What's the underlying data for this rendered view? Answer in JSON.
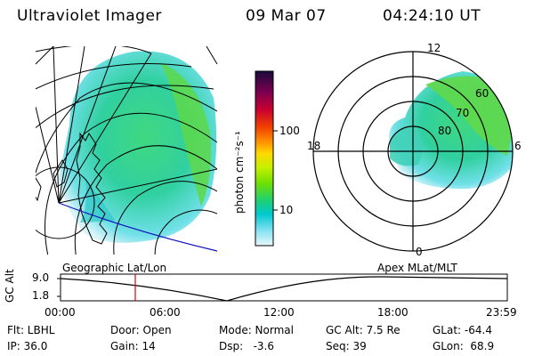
{
  "header": {
    "instrument": "Ultraviolet Imager",
    "date": "09 Mar 07",
    "time": "04:24:10 UT"
  },
  "left_panel": {
    "projection_label": "Geographic Lat/Lon"
  },
  "colorbar": {
    "label": "photon cm⁻²s⁻¹",
    "ticks": [
      "100",
      "10"
    ],
    "scale": "log",
    "colors": [
      "#1a0a3a",
      "#7a0050",
      "#c80030",
      "#f04000",
      "#ff8c00",
      "#ffd700",
      "#c8f000",
      "#70e000",
      "#20d070",
      "#00c8d0",
      "#80e0f0",
      "#e8f8fc"
    ]
  },
  "right_panel": {
    "projection_label": "Apex MLat/MLT",
    "mlt_labels": [
      "12",
      "18",
      "6",
      "0"
    ],
    "mlat_labels": [
      "60",
      "70",
      "80"
    ]
  },
  "altitude_plot": {
    "ylabel": "GC Alt",
    "yticks": [
      "9.0",
      "1.8"
    ],
    "xticks": [
      "00:00",
      "06:00",
      "12:00",
      "18:00",
      "23:59"
    ],
    "current_time_hours": 4.4
  },
  "info": {
    "flt": "Flt: LBHL",
    "ip": "IP: 36.0",
    "door": "Door: Open",
    "gain": "Gain: 14",
    "mode": "Mode: Normal",
    "dsp": "Dsp:   -3.6",
    "gcalt": "GC Alt: 7.5 Re",
    "seq": "Seq: 39",
    "glat": "GLat: -64.4",
    "glon": "GLon:  68.9"
  }
}
